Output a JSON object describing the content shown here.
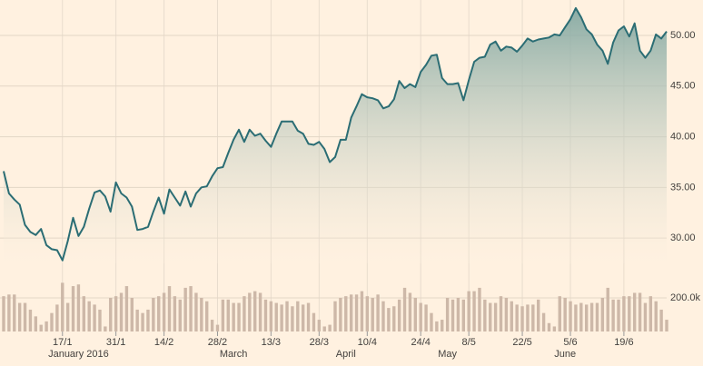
{
  "chart_data": {
    "type": "line",
    "categories": [
      null,
      null,
      null,
      null,
      null,
      null,
      null,
      null,
      null,
      null,
      null,
      "17/1",
      null,
      null,
      null,
      null,
      null,
      null,
      null,
      null,
      null,
      "31/1",
      null,
      null,
      null,
      null,
      null,
      null,
      null,
      null,
      "14/2",
      null,
      null,
      null,
      null,
      null,
      null,
      null,
      null,
      null,
      "28/2",
      null,
      null,
      null,
      null,
      null,
      null,
      null,
      null,
      null,
      "13/3",
      null,
      null,
      null,
      null,
      null,
      null,
      null,
      null,
      "28/3",
      null,
      null,
      null,
      null,
      null,
      null,
      null,
      null,
      "10/4",
      null,
      null,
      null,
      null,
      null,
      null,
      null,
      null,
      null,
      "24/4",
      null,
      null,
      null,
      null,
      null,
      null,
      null,
      null,
      "8/5",
      null,
      null,
      null,
      null,
      null,
      null,
      null,
      null,
      null,
      "22/5",
      null,
      null,
      null,
      null,
      null,
      null,
      null,
      null,
      "5/6",
      null,
      null,
      null,
      null,
      null,
      null,
      null,
      null,
      null,
      "19/6",
      null,
      null,
      null,
      null,
      null,
      null,
      null,
      null
    ],
    "month_labels": [
      null,
      null,
      null,
      null,
      null,
      null,
      null,
      null,
      null,
      null,
      null,
      null,
      null,
      null,
      "January 2016",
      null,
      null,
      null,
      null,
      null,
      null,
      null,
      null,
      null,
      null,
      null,
      null,
      null,
      null,
      null,
      null,
      null,
      null,
      null,
      null,
      null,
      null,
      null,
      null,
      null,
      null,
      null,
      null,
      "March",
      null,
      null,
      null,
      null,
      null,
      null,
      null,
      null,
      null,
      null,
      null,
      null,
      null,
      null,
      null,
      null,
      null,
      null,
      null,
      null,
      "April",
      null,
      null,
      null,
      null,
      null,
      null,
      null,
      null,
      null,
      null,
      null,
      null,
      null,
      null,
      null,
      null,
      null,
      null,
      "May",
      null,
      null,
      null,
      null,
      null,
      null,
      null,
      null,
      null,
      null,
      null,
      null,
      null,
      null,
      null,
      null,
      null,
      null,
      null,
      null,
      null,
      "June",
      null,
      null,
      null,
      null,
      null,
      null,
      null,
      null,
      null,
      null,
      null,
      null,
      null,
      null,
      null,
      null,
      null,
      null,
      null
    ],
    "series": [
      {
        "color": "#2b6d74",
        "values": [
          36.6,
          34.4,
          33.8,
          33.3,
          31.3,
          30.6,
          30.3,
          30.9,
          29.3,
          28.9,
          28.8,
          27.8,
          29.7,
          32.0,
          30.2,
          31.1,
          32.9,
          34.5,
          34.7,
          34.1,
          32.6,
          35.5,
          34.4,
          34.0,
          33.1,
          30.8,
          30.9,
          31.1,
          32.6,
          34.0,
          32.4,
          34.8,
          34.0,
          33.2,
          34.6,
          33.1,
          34.4,
          35.0,
          35.1,
          36.1,
          36.9,
          37.0,
          38.4,
          39.7,
          40.7,
          39.5,
          40.7,
          40.1,
          40.3,
          39.6,
          39.0,
          40.3,
          41.5,
          41.5,
          41.5,
          40.6,
          40.3,
          39.3,
          39.2,
          39.5,
          38.8,
          37.5,
          38.0,
          39.7,
          39.7,
          41.9,
          43.0,
          44.2,
          43.9,
          43.8,
          43.6,
          42.8,
          43.0,
          43.7,
          45.5,
          44.8,
          45.2,
          44.9,
          46.4,
          47.1,
          48.0,
          48.1,
          45.8,
          45.2,
          45.2,
          45.3,
          43.6,
          45.6,
          47.4,
          47.8,
          47.9,
          49.1,
          49.4,
          48.5,
          48.9,
          48.8,
          48.4,
          49.0,
          49.7,
          49.4,
          49.6,
          49.7,
          49.8,
          50.1,
          50.0,
          50.8,
          51.6,
          52.7,
          51.8,
          50.6,
          50.1,
          49.1,
          48.5,
          47.2,
          49.3,
          50.5,
          50.9,
          49.9,
          51.2,
          48.5,
          47.8,
          48.5,
          50.1,
          49.7,
          50.4
        ]
      }
    ],
    "ylim": [
      27.5,
      53.5
    ],
    "yticks": [
      {
        "value": 30,
        "label": "30.00"
      },
      {
        "value": 35,
        "label": "35.00"
      },
      {
        "value": 40,
        "label": "40.00"
      },
      {
        "value": 45,
        "label": "45.00"
      },
      {
        "value": 50,
        "label": "50.00"
      }
    ],
    "grid": true,
    "volume": {
      "type": "bar",
      "color": "#cdb8a8",
      "values": [
        210,
        220,
        220,
        170,
        170,
        130,
        90,
        40,
        60,
        110,
        160,
        290,
        170,
        270,
        280,
        210,
        180,
        160,
        130,
        30,
        200,
        210,
        230,
        270,
        200,
        130,
        110,
        130,
        200,
        210,
        230,
        270,
        210,
        190,
        260,
        270,
        230,
        200,
        180,
        70,
        40,
        190,
        190,
        170,
        170,
        210,
        230,
        240,
        230,
        190,
        180,
        170,
        160,
        180,
        150,
        180,
        160,
        170,
        110,
        70,
        30,
        40,
        180,
        200,
        210,
        220,
        220,
        240,
        210,
        200,
        220,
        180,
        140,
        150,
        190,
        260,
        230,
        200,
        170,
        160,
        110,
        60,
        70,
        200,
        190,
        200,
        190,
        240,
        240,
        260,
        190,
        170,
        170,
        210,
        200,
        180,
        160,
        150,
        160,
        160,
        190,
        110,
        50,
        30,
        210,
        200,
        180,
        160,
        170,
        160,
        170,
        170,
        200,
        260,
        190,
        190,
        210,
        210,
        230,
        230,
        170,
        210,
        180,
        130,
        70
      ],
      "ylim": [
        0,
        400
      ],
      "yticks": [
        {
          "value": 200,
          "label": "200.0k"
        }
      ]
    }
  }
}
